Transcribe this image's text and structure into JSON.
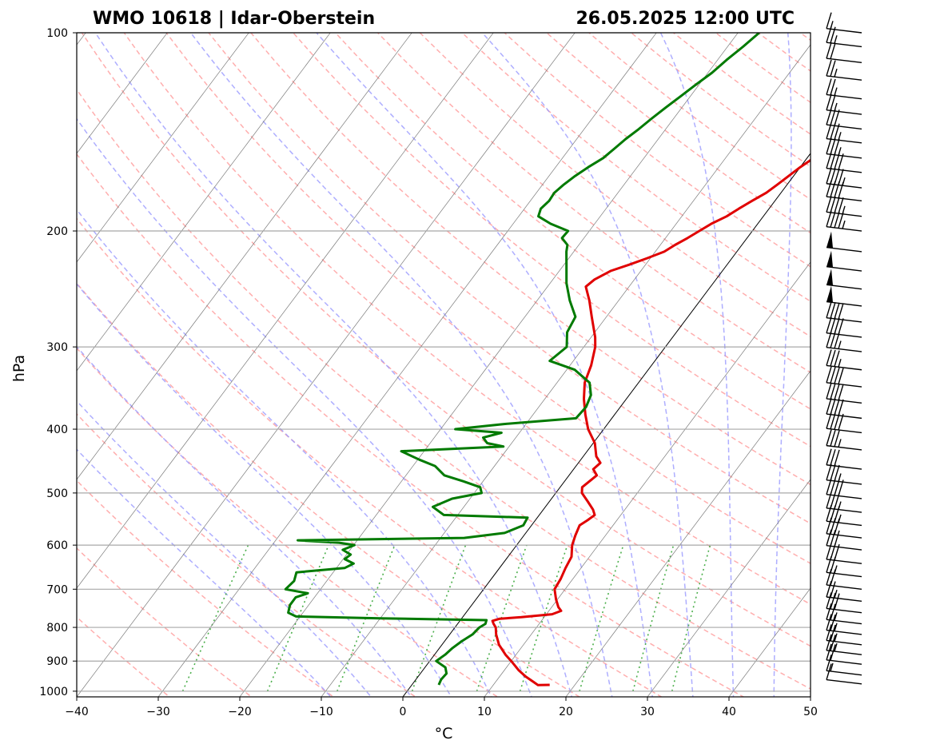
{
  "title_left": "WMO 10618 | Idar-Oberstein",
  "title_right": "26.05.2025 12:00 UTC",
  "colors": {
    "temperature": "#e00000",
    "dewpoint": "#007a00",
    "isobar_grid": "#a8a8a8",
    "isotherm": "#7a7a7a",
    "dry_adiabat": "#ff9a9a",
    "moist_adiabat": "#9a9aff",
    "mixing_ratio": "#4caf4c",
    "zero_isotherm": "#000000"
  },
  "chart_data": {
    "type": "skew-t",
    "xlabel": "°C",
    "ylabel": "hPa",
    "xlim": [
      -40,
      50
    ],
    "ylim": [
      1020,
      100
    ],
    "y_scale": "log",
    "x_ticks": [
      -40,
      -30,
      -20,
      -10,
      0,
      10,
      20,
      30,
      40,
      50
    ],
    "x_tick_labels": [
      "−40",
      "−30",
      "−20",
      "−10",
      "0",
      "10",
      "20",
      "30",
      "40",
      "50"
    ],
    "y_ticks": [
      1000,
      900,
      800,
      700,
      600,
      500,
      400,
      300,
      200,
      100
    ],
    "y_tick_labels": [
      "1000",
      "900",
      "800",
      "700",
      "600",
      "500",
      "400",
      "300",
      "200",
      "100"
    ],
    "grid": true,
    "series": [
      {
        "name": "temperature",
        "points": [
          [
            978,
            16.9
          ],
          [
            979,
            15.5
          ],
          [
            970,
            14.8
          ],
          [
            950,
            13.2
          ],
          [
            930,
            11.8
          ],
          [
            900,
            10.0
          ],
          [
            880,
            8.7
          ],
          [
            850,
            7.0
          ],
          [
            820,
            5.7
          ],
          [
            800,
            5.0
          ],
          [
            790,
            4.4
          ],
          [
            782,
            4.0
          ],
          [
            776,
            4.7
          ],
          [
            772,
            7.2
          ],
          [
            764,
            10.7
          ],
          [
            755,
            11.5
          ],
          [
            745,
            10.8
          ],
          [
            725,
            9.8
          ],
          [
            700,
            8.7
          ],
          [
            675,
            8.5
          ],
          [
            650,
            8.1
          ],
          [
            625,
            7.8
          ],
          [
            600,
            6.8
          ],
          [
            580,
            6.3
          ],
          [
            560,
            5.9
          ],
          [
            550,
            6.4
          ],
          [
            540,
            6.8
          ],
          [
            530,
            6.1
          ],
          [
            515,
            4.7
          ],
          [
            500,
            3.2
          ],
          [
            490,
            2.7
          ],
          [
            470,
            3.4
          ],
          [
            460,
            2.4
          ],
          [
            450,
            2.7
          ],
          [
            440,
            1.6
          ],
          [
            420,
            0.2
          ],
          [
            400,
            -1.9
          ],
          [
            380,
            -3.6
          ],
          [
            360,
            -5.2
          ],
          [
            340,
            -6.6
          ],
          [
            320,
            -7.4
          ],
          [
            300,
            -8.6
          ],
          [
            290,
            -9.5
          ],
          [
            270,
            -11.8
          ],
          [
            255,
            -13.6
          ],
          [
            243,
            -15.3
          ],
          [
            237,
            -14.9
          ],
          [
            230,
            -13.7
          ],
          [
            225,
            -12.0
          ],
          [
            220,
            -10.4
          ],
          [
            215,
            -8.9
          ],
          [
            210,
            -8.2
          ],
          [
            205,
            -7.3
          ],
          [
            200,
            -6.5
          ],
          [
            195,
            -5.7
          ],
          [
            190,
            -4.5
          ],
          [
            185,
            -3.7
          ],
          [
            180,
            -2.8
          ],
          [
            175,
            -1.8
          ],
          [
            170,
            -1.2
          ],
          [
            165,
            -0.6
          ],
          [
            160,
            0.0
          ],
          [
            155,
            0.8
          ],
          [
            150,
            1.2
          ],
          [
            145,
            1.7
          ],
          [
            140,
            2.4
          ],
          [
            135,
            3.1
          ],
          [
            130,
            3.9
          ],
          [
            125,
            4.5
          ],
          [
            120,
            5.3
          ],
          [
            115,
            6.5
          ],
          [
            110,
            7.1
          ],
          [
            105,
            7.4
          ],
          [
            100,
            8.1
          ]
        ]
      },
      {
        "name": "dewpoint",
        "points": [
          [
            978,
            3.3
          ],
          [
            960,
            3.1
          ],
          [
            940,
            3.2
          ],
          [
            920,
            2.5
          ],
          [
            900,
            0.8
          ],
          [
            880,
            1.3
          ],
          [
            860,
            1.6
          ],
          [
            840,
            2.1
          ],
          [
            820,
            2.8
          ],
          [
            800,
            3.0
          ],
          [
            790,
            3.4
          ],
          [
            780,
            3.2
          ],
          [
            775,
            -10.0
          ],
          [
            770,
            -20.5
          ],
          [
            760,
            -21.8
          ],
          [
            740,
            -22.3
          ],
          [
            720,
            -22.3
          ],
          [
            710,
            -21.2
          ],
          [
            700,
            -24.3
          ],
          [
            680,
            -24.0
          ],
          [
            660,
            -24.5
          ],
          [
            650,
            -19.0
          ],
          [
            640,
            -18.3
          ],
          [
            630,
            -19.8
          ],
          [
            620,
            -19.5
          ],
          [
            610,
            -20.9
          ],
          [
            600,
            -19.9
          ],
          [
            595,
            -22.0
          ],
          [
            590,
            -27.3
          ],
          [
            585,
            -7.1
          ],
          [
            575,
            -2.6
          ],
          [
            560,
            -1.0
          ],
          [
            545,
            -1.2
          ],
          [
            540,
            -11.7
          ],
          [
            525,
            -13.8
          ],
          [
            510,
            -12.2
          ],
          [
            500,
            -9.1
          ],
          [
            490,
            -9.8
          ],
          [
            480,
            -12.4
          ],
          [
            470,
            -15.3
          ],
          [
            455,
            -17.3
          ],
          [
            445,
            -19.8
          ],
          [
            432,
            -22.8
          ],
          [
            425,
            -10.7
          ],
          [
            420,
            -13.0
          ],
          [
            412,
            -14.0
          ],
          [
            405,
            -12.2
          ],
          [
            400,
            -18.2
          ],
          [
            393,
            -12.8
          ],
          [
            385,
            -4.4
          ],
          [
            370,
            -4.2
          ],
          [
            355,
            -4.7
          ],
          [
            340,
            -6.0
          ],
          [
            325,
            -9.0
          ],
          [
            315,
            -12.9
          ],
          [
            300,
            -12.1
          ],
          [
            285,
            -13.4
          ],
          [
            270,
            -13.8
          ],
          [
            255,
            -16.0
          ],
          [
            240,
            -18.0
          ],
          [
            225,
            -19.7
          ],
          [
            215,
            -20.9
          ],
          [
            210,
            -21.4
          ],
          [
            205,
            -22.7
          ],
          [
            200,
            -22.6
          ],
          [
            195,
            -25.4
          ],
          [
            190,
            -27.6
          ],
          [
            185,
            -28.0
          ],
          [
            180,
            -27.7
          ],
          [
            175,
            -27.8
          ],
          [
            170,
            -27.4
          ],
          [
            165,
            -26.8
          ],
          [
            160,
            -26.0
          ],
          [
            155,
            -25.0
          ],
          [
            150,
            -24.5
          ],
          [
            145,
            -24.0
          ],
          [
            140,
            -23.3
          ],
          [
            135,
            -22.7
          ],
          [
            130,
            -22.0
          ],
          [
            125,
            -21.2
          ],
          [
            120,
            -20.4
          ],
          [
            115,
            -19.5
          ],
          [
            110,
            -18.9
          ],
          [
            105,
            -18.1
          ],
          [
            100,
            -17.4
          ]
        ]
      }
    ],
    "wind_barbs": [
      {
        "p": 975,
        "kt": 10
      },
      {
        "p": 945,
        "kt": 15
      },
      {
        "p": 910,
        "kt": 20
      },
      {
        "p": 880,
        "kt": 25
      },
      {
        "p": 850,
        "kt": 25
      },
      {
        "p": 820,
        "kt": 25
      },
      {
        "p": 790,
        "kt": 25
      },
      {
        "p": 760,
        "kt": 30
      },
      {
        "p": 730,
        "kt": 25
      },
      {
        "p": 700,
        "kt": 20
      },
      {
        "p": 670,
        "kt": 25
      },
      {
        "p": 640,
        "kt": 30
      },
      {
        "p": 610,
        "kt": 30
      },
      {
        "p": 585,
        "kt": 30
      },
      {
        "p": 560,
        "kt": 35
      },
      {
        "p": 535,
        "kt": 35
      },
      {
        "p": 510,
        "kt": 40
      },
      {
        "p": 485,
        "kt": 35
      },
      {
        "p": 460,
        "kt": 30
      },
      {
        "p": 430,
        "kt": 35
      },
      {
        "p": 405,
        "kt": 40
      },
      {
        "p": 385,
        "kt": 40
      },
      {
        "p": 365,
        "kt": 40
      },
      {
        "p": 345,
        "kt": 40
      },
      {
        "p": 325,
        "kt": 35
      },
      {
        "p": 305,
        "kt": 35
      },
      {
        "p": 290,
        "kt": 40
      },
      {
        "p": 275,
        "kt": 40
      },
      {
        "p": 260,
        "kt": 50
      },
      {
        "p": 245,
        "kt": 50
      },
      {
        "p": 230,
        "kt": 50
      },
      {
        "p": 215,
        "kt": 50
      },
      {
        "p": 200,
        "kt": 45
      },
      {
        "p": 190,
        "kt": 45
      },
      {
        "p": 180,
        "kt": 40
      },
      {
        "p": 172,
        "kt": 45
      },
      {
        "p": 163,
        "kt": 40
      },
      {
        "p": 155,
        "kt": 35
      },
      {
        "p": 147,
        "kt": 35
      },
      {
        "p": 140,
        "kt": 30
      },
      {
        "p": 133,
        "kt": 25
      },
      {
        "p": 126,
        "kt": 25
      },
      {
        "p": 118,
        "kt": 25
      },
      {
        "p": 111,
        "kt": 20
      },
      {
        "p": 105,
        "kt": 25
      },
      {
        "p": 100,
        "kt": 15
      }
    ]
  }
}
